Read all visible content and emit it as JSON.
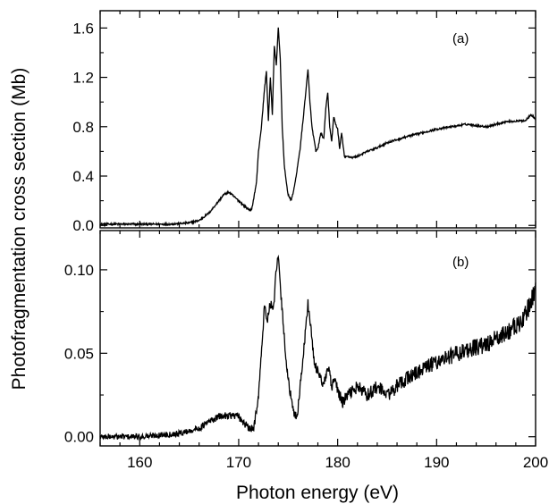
{
  "chart_data": [
    {
      "type": "line",
      "panel_label": "(a)",
      "xlabel": "Photon energy (eV)",
      "ylabel": "Photofragmentation cross section (Mb)",
      "xlim": [
        156,
        200
      ],
      "ylim": [
        -0.02,
        1.74
      ],
      "x_ticks": [
        "160",
        "170",
        "180",
        "190",
        "200"
      ],
      "y_ticks": [
        "0.0",
        "0.4",
        "0.8",
        "1.2",
        "1.6"
      ],
      "y_tick_values": [
        0.0,
        0.4,
        0.8,
        1.2,
        1.6
      ],
      "series": [
        {
          "x": [
            156,
            160,
            163,
            165,
            166,
            167,
            168,
            168.5,
            169,
            170,
            170.8,
            171.3,
            171.8,
            172.0,
            172.3,
            172.6,
            172.8,
            173.0,
            173.2,
            173.4,
            173.6,
            173.8,
            174.0,
            174.2,
            174.4,
            174.6,
            174.8,
            175.0,
            175.3,
            175.6,
            175.9,
            176.2,
            176.5,
            176.8,
            177.0,
            177.2,
            177.4,
            177.6,
            177.8,
            178.0,
            178.3,
            178.6,
            178.8,
            179.0,
            179.2,
            179.4,
            179.6,
            179.8,
            180.0,
            180.2,
            180.4,
            180.7,
            181.0,
            181.5,
            182,
            183,
            184,
            185,
            187,
            190,
            193,
            195,
            197,
            199,
            199.5,
            200
          ],
          "y": [
            0.01,
            0.01,
            0.01,
            0.02,
            0.04,
            0.1,
            0.2,
            0.25,
            0.27,
            0.2,
            0.14,
            0.12,
            0.35,
            0.6,
            0.8,
            1.1,
            1.25,
            0.85,
            1.2,
            0.9,
            1.45,
            1.3,
            1.6,
            1.35,
            0.8,
            0.5,
            0.35,
            0.25,
            0.2,
            0.3,
            0.45,
            0.62,
            0.85,
            1.1,
            1.26,
            1.0,
            0.8,
            0.7,
            0.6,
            0.62,
            0.75,
            0.7,
            0.95,
            1.07,
            0.8,
            0.68,
            0.88,
            0.82,
            0.78,
            0.62,
            0.75,
            0.55,
            0.56,
            0.55,
            0.56,
            0.6,
            0.63,
            0.67,
            0.72,
            0.78,
            0.82,
            0.8,
            0.84,
            0.85,
            0.9,
            0.86
          ]
        }
      ]
    },
    {
      "type": "line",
      "panel_label": "(b)",
      "xlabel": "Photon energy (eV)",
      "ylabel": "Photofragmentation cross section (Mb)",
      "xlim": [
        156,
        200
      ],
      "ylim": [
        -0.0055,
        0.1235
      ],
      "x_ticks": [
        "160",
        "170",
        "180",
        "190",
        "200"
      ],
      "x_tick_values": [
        160,
        170,
        180,
        190,
        200
      ],
      "y_ticks": [
        "0.00",
        "0.05",
        "0.10"
      ],
      "y_tick_values": [
        0.0,
        0.05,
        0.1
      ],
      "series": [
        {
          "x": [
            156,
            160,
            164,
            166,
            167,
            168,
            169,
            170,
            171,
            171.5,
            172,
            172.3,
            172.6,
            172.9,
            173.2,
            173.5,
            173.8,
            174.0,
            174.2,
            174.5,
            174.8,
            175.1,
            175.5,
            175.9,
            176.3,
            176.7,
            177.0,
            177.3,
            177.6,
            177.9,
            178.2,
            178.5,
            178.8,
            179.1,
            179.4,
            179.7,
            180.0,
            180.5,
            181,
            182,
            183,
            184,
            185,
            187,
            190,
            193,
            195,
            197,
            198.5,
            199.5,
            200
          ],
          "y": [
            0.0,
            0.0,
            0.002,
            0.005,
            0.009,
            0.012,
            0.013,
            0.012,
            0.005,
            0.004,
            0.025,
            0.05,
            0.078,
            0.07,
            0.08,
            0.075,
            0.1,
            0.108,
            0.09,
            0.068,
            0.045,
            0.03,
            0.015,
            0.012,
            0.035,
            0.06,
            0.08,
            0.065,
            0.045,
            0.04,
            0.038,
            0.03,
            0.035,
            0.042,
            0.028,
            0.035,
            0.028,
            0.02,
            0.025,
            0.03,
            0.025,
            0.03,
            0.025,
            0.035,
            0.045,
            0.052,
            0.055,
            0.062,
            0.068,
            0.08,
            0.09
          ]
        }
      ]
    }
  ]
}
